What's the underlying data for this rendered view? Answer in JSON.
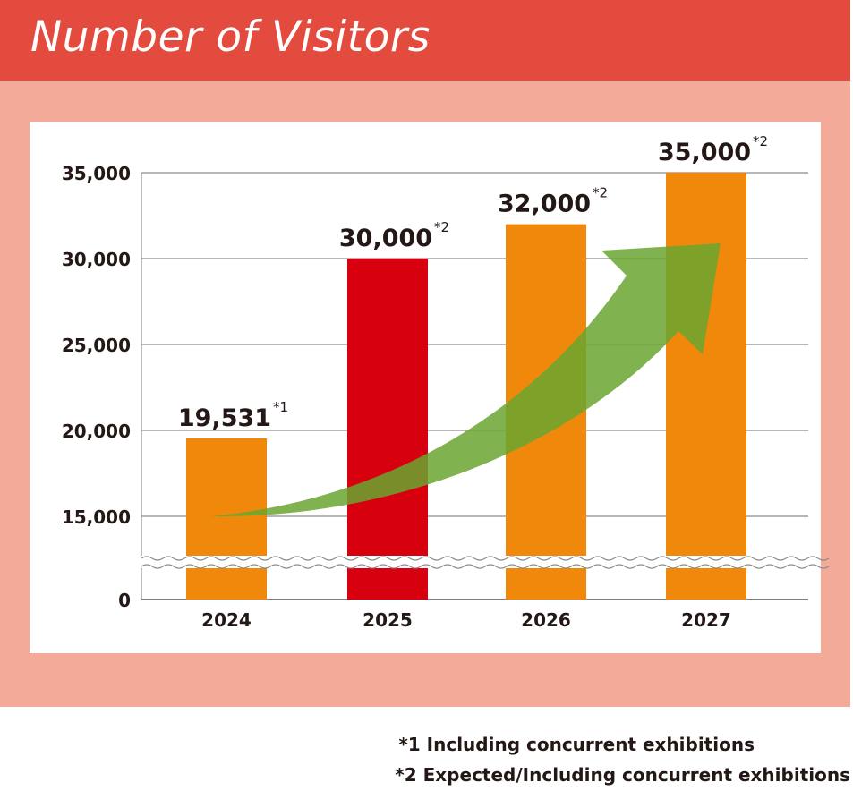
{
  "chart_data": {
    "type": "bar",
    "title": "Number of Visitors",
    "categories": [
      "2024",
      "2025",
      "2026",
      "2027"
    ],
    "values": [
      19531,
      30000,
      32000,
      35000
    ],
    "value_labels": [
      "19,531",
      "30,000",
      "32,000",
      "35,000"
    ],
    "value_notes": [
      "*1",
      "*2",
      "*2",
      "*2"
    ],
    "bar_colors": [
      "#f0890b",
      "#d7000f",
      "#f0890b",
      "#f0890b"
    ],
    "yticks": [
      {
        "value": 0,
        "label": "0"
      },
      {
        "value": 15000,
        "label": "15,000"
      },
      {
        "value": 20000,
        "label": "20,000"
      },
      {
        "value": 25000,
        "label": "25,000"
      },
      {
        "value": 30000,
        "label": "30,000"
      },
      {
        "value": 35000,
        "label": "35,000"
      }
    ],
    "ylim": [
      0,
      35000
    ],
    "axis_break": [
      0,
      15000
    ],
    "grid": true,
    "trend_arrow": true,
    "arrow_color": "#6aa630",
    "xlabel": "",
    "ylabel": ""
  },
  "footnotes": [
    "*1 Including concurrent exhibitions",
    "*2 Expected/Including concurrent exhibitions"
  ]
}
